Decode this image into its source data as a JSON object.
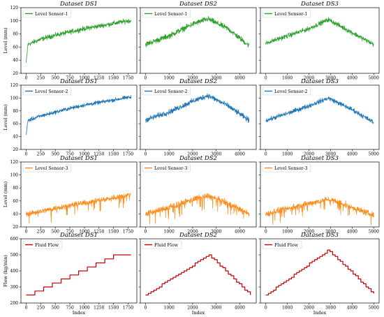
{
  "colors": {
    "sensor1": "#2ca02c",
    "sensor2": "#1f77b4",
    "sensor3": "#ff8c1a",
    "flow": "#c00000"
  },
  "columns": [
    "Dataset DS1",
    "Dataset DS2",
    "Dataset DS3"
  ],
  "rows": [
    {
      "legend": "Level Sensor-1",
      "ylabel": "Level (mm)",
      "color_key": "sensor1",
      "yticks": [
        20,
        40,
        60,
        80,
        100,
        120
      ],
      "ylim": [
        20,
        120
      ]
    },
    {
      "legend": "Level Sensor-2",
      "ylabel": "Level (mm)",
      "color_key": "sensor2",
      "yticks": [
        20,
        40,
        60,
        80,
        100,
        120
      ],
      "ylim": [
        20,
        120
      ]
    },
    {
      "legend": "Level Sensor-3",
      "ylabel": "Level (mm)",
      "color_key": "sensor3",
      "yticks": [
        20,
        40,
        60,
        80,
        100,
        120
      ],
      "ylim": [
        20,
        120
      ]
    },
    {
      "legend": "Fluid Flow",
      "ylabel": "Flow (kg/min)",
      "color_key": "flow",
      "yticks": [
        200,
        300,
        400,
        500,
        600
      ],
      "ylim": [
        200,
        600
      ]
    }
  ],
  "xaxes": [
    {
      "xticks": [
        0,
        250,
        500,
        750,
        1000,
        1250,
        1500,
        1750
      ],
      "xlim": [
        -90,
        1900
      ]
    },
    {
      "xticks": [
        0,
        1000,
        2000,
        3000,
        4000
      ],
      "xlim": [
        -220,
        4700
      ]
    },
    {
      "xticks": [
        0,
        1000,
        2000,
        3000,
        4000,
        5000
      ],
      "xlim": [
        -250,
        5250
      ]
    }
  ],
  "xlabel": "Index",
  "chart_data": [
    {
      "type": "line",
      "title": "Dataset DS1",
      "ylabel": "Level (mm)",
      "series": [
        {
          "name": "Level Sensor-1",
          "x": [
            0,
            30,
            250,
            500,
            750,
            1000,
            1250,
            1500,
            1750,
            1800
          ],
          "values": [
            36,
            64,
            72,
            78,
            83,
            88,
            92,
            96,
            100,
            100
          ]
        }
      ],
      "noise": 3,
      "ylim": [
        20,
        120
      ],
      "xlim": [
        -90,
        1900
      ]
    },
    {
      "type": "line",
      "title": "Dataset DS2",
      "series": [
        {
          "name": "Level Sensor-1",
          "x": [
            0,
            1000,
            2000,
            2650,
            3500,
            4400
          ],
          "values": [
            64,
            77,
            95,
            103,
            88,
            62
          ]
        }
      ],
      "noise": 3.5,
      "ylim": [
        20,
        120
      ],
      "xlim": [
        -220,
        4700
      ]
    },
    {
      "type": "line",
      "title": "Dataset DS3",
      "series": [
        {
          "name": "Level Sensor-1",
          "x": [
            0,
            1000,
            2000,
            2900,
            4000,
            5000
          ],
          "values": [
            66,
            77,
            88,
            102,
            82,
            64
          ]
        }
      ],
      "noise": 3,
      "ylim": [
        20,
        120
      ],
      "xlim": [
        -250,
        5250
      ]
    },
    {
      "type": "line",
      "title": "Dataset DS1",
      "ylabel": "Level (mm)",
      "series": [
        {
          "name": "Level Sensor-2",
          "x": [
            0,
            30,
            250,
            500,
            750,
            1000,
            1250,
            1500,
            1750,
            1800
          ],
          "values": [
            43,
            65,
            72,
            78,
            84,
            89,
            93,
            97,
            101,
            101
          ]
        }
      ],
      "noise": 2.5,
      "ylim": [
        20,
        120
      ],
      "xlim": [
        -90,
        1900
      ]
    },
    {
      "type": "line",
      "title": "Dataset DS2",
      "series": [
        {
          "name": "Level Sensor-2",
          "x": [
            0,
            1000,
            2000,
            2650,
            3500,
            4400
          ],
          "values": [
            66,
            78,
            95,
            104,
            88,
            65
          ]
        }
      ],
      "noise": 3.5,
      "ylim": [
        20,
        120
      ],
      "xlim": [
        -220,
        4700
      ]
    },
    {
      "type": "line",
      "title": "Dataset DS3",
      "series": [
        {
          "name": "Level Sensor-2",
          "x": [
            0,
            1000,
            2000,
            2900,
            4000,
            5000
          ],
          "values": [
            65,
            76,
            88,
            100,
            82,
            62
          ]
        }
      ],
      "noise": 3,
      "ylim": [
        20,
        120
      ],
      "xlim": [
        -250,
        5250
      ]
    },
    {
      "type": "line",
      "title": "Dataset DS1",
      "ylabel": "Level (mm)",
      "series": [
        {
          "name": "Level Sensor-3",
          "x": [
            0,
            250,
            500,
            750,
            1000,
            1250,
            1500,
            1750,
            1800
          ],
          "values": [
            40,
            44,
            49,
            53,
            57,
            61,
            65,
            69,
            70
          ]
        }
      ],
      "noise": 3.5,
      "ylim": [
        20,
        120
      ],
      "xlim": [
        -90,
        1900
      ]
    },
    {
      "type": "line",
      "title": "Dataset DS2",
      "series": [
        {
          "name": "Level Sensor-3",
          "x": [
            0,
            1000,
            2000,
            2650,
            3500,
            4400
          ],
          "values": [
            40,
            50,
            62,
            68,
            56,
            40
          ]
        }
      ],
      "noise": 4,
      "ylim": [
        20,
        120
      ],
      "xlim": [
        -220,
        4700
      ]
    },
    {
      "type": "line",
      "title": "Dataset DS3",
      "series": [
        {
          "name": "Level Sensor-3",
          "x": [
            0,
            1000,
            2000,
            2900,
            4000,
            5000
          ],
          "values": [
            40,
            48,
            56,
            63,
            50,
            38
          ]
        }
      ],
      "noise": 4,
      "ylim": [
        20,
        120
      ],
      "xlim": [
        -250,
        5250
      ]
    },
    {
      "type": "line",
      "title": "Dataset DS1",
      "xlabel": "Index",
      "ylabel": "Flow (kg/min)",
      "step": true,
      "series": [
        {
          "name": "Fluid Flow",
          "x": [
            0,
            150,
            300,
            450,
            600,
            750,
            900,
            1050,
            1200,
            1350,
            1500,
            1650,
            1800
          ],
          "values": [
            250,
            275,
            300,
            325,
            350,
            375,
            400,
            425,
            450,
            475,
            500,
            500,
            500
          ]
        }
      ],
      "ylim": [
        200,
        600
      ],
      "xlim": [
        -90,
        1900
      ]
    },
    {
      "type": "line",
      "title": "Dataset DS2",
      "xlabel": "Index",
      "step": true,
      "series": [
        {
          "name": "Fluid Flow",
          "x": [
            0,
            2700,
            4300,
            4450
          ],
          "values": [
            250,
            500,
            270,
            250
          ]
        }
      ],
      "steps": 38,
      "ylim": [
        200,
        600
      ],
      "xlim": [
        -220,
        4700
      ]
    },
    {
      "type": "line",
      "title": "Dataset DS3",
      "xlabel": "Index",
      "step": true,
      "series": [
        {
          "name": "Fluid Flow",
          "x": [
            0,
            2900,
            4900,
            5000
          ],
          "values": [
            250,
            530,
            270,
            260
          ]
        }
      ],
      "steps": 42,
      "ylim": [
        200,
        600
      ],
      "xlim": [
        -250,
        5250
      ]
    }
  ]
}
